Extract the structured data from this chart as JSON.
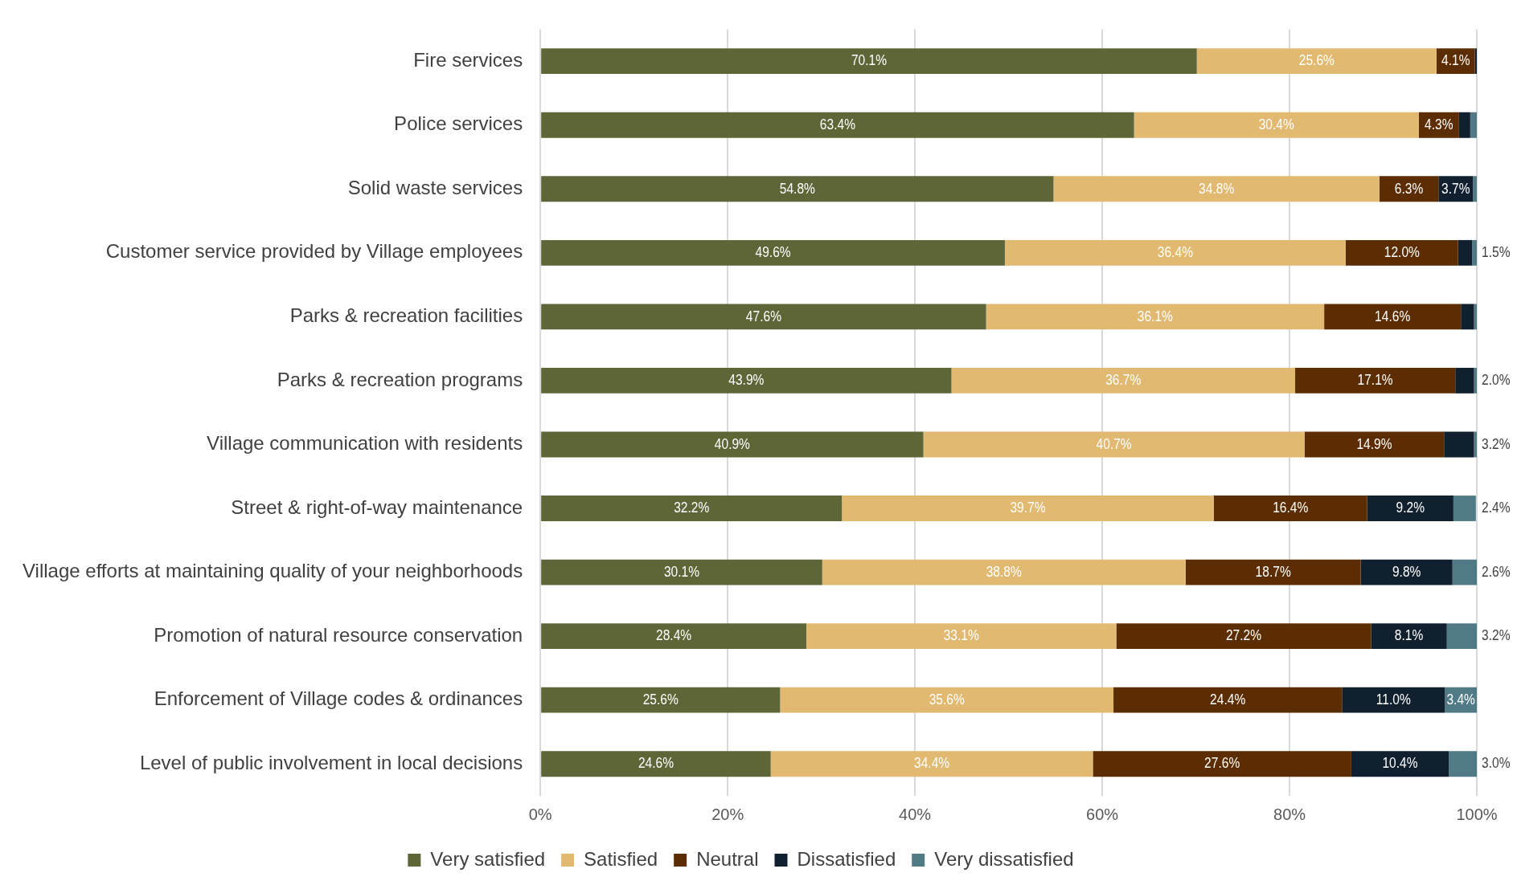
{
  "chart_data": {
    "type": "bar",
    "orientation": "horizontal",
    "stacked": true,
    "legend": "bottom",
    "grid": "x",
    "categories": [
      "Fire services",
      "Police services",
      "Solid waste services",
      "Customer service provided by Village employees",
      "Parks & recreation facilities",
      "Parks & recreation programs",
      "Village communication with residents",
      "Street & right-of-way maintenance",
      "Village efforts at maintaining quality of your neighborhoods",
      "Promotion of natural resource conservation",
      "Enforcement of Village codes & ordinances",
      "Level of public involvement in local decisions"
    ],
    "xlim": [
      0,
      100
    ],
    "xticks": [
      {
        "value": 0,
        "label": "0%"
      },
      {
        "value": 20,
        "label": "20%"
      },
      {
        "value": 40,
        "label": "40%"
      },
      {
        "value": 60,
        "label": "60%"
      },
      {
        "value": 80,
        "label": "80%"
      },
      {
        "value": 100,
        "label": "100%"
      }
    ],
    "series": [
      {
        "name": "Very satisfied",
        "color": "#5e6638",
        "values": [
          70.1,
          63.4,
          54.8,
          49.6,
          47.6,
          43.9,
          40.9,
          32.2,
          30.1,
          28.4,
          25.6,
          24.6
        ],
        "value_labels": [
          "70.1%",
          "63.4%",
          "54.8%",
          "49.6%",
          "47.6%",
          "43.9%",
          "40.9%",
          "32.2%",
          "30.1%",
          "28.4%",
          "25.6%",
          "24.6%"
        ]
      },
      {
        "name": "Satisfied",
        "color": "#e2b970",
        "values": [
          25.6,
          30.4,
          34.8,
          36.4,
          36.1,
          36.7,
          40.7,
          39.7,
          38.8,
          33.1,
          35.6,
          34.4
        ],
        "value_labels": [
          "25.6%",
          "30.4%",
          "34.8%",
          "36.4%",
          "36.1%",
          "36.7%",
          "40.7%",
          "39.7%",
          "38.8%",
          "33.1%",
          "35.6%",
          "34.4%"
        ]
      },
      {
        "name": "Neutral",
        "color": "#5c2d02",
        "values": [
          4.1,
          4.3,
          6.3,
          12.0,
          14.6,
          17.1,
          14.9,
          16.4,
          18.7,
          27.2,
          24.4,
          27.6
        ],
        "value_labels": [
          "4.1%",
          "4.3%",
          "6.3%",
          "12.0%",
          "14.6%",
          "17.1%",
          "14.9%",
          "16.4%",
          "18.7%",
          "27.2%",
          "24.4%",
          "27.6%"
        ]
      },
      {
        "name": "Dissatisfied",
        "color": "#10202e",
        "values": [
          0.2,
          1.2,
          3.7,
          1.5,
          1.4,
          2.0,
          3.2,
          9.2,
          9.8,
          8.1,
          11.0,
          10.4
        ],
        "value_labels": [
          null,
          null,
          "3.7%",
          "1.5%",
          null,
          "2.0%",
          "3.2%",
          "9.2%",
          "9.8%",
          "8.1%",
          "11.0%",
          "10.4%"
        ]
      },
      {
        "name": "Very dissatisfied",
        "color": "#517a87",
        "values": [
          0,
          0.7,
          0.4,
          0.5,
          0.3,
          0.3,
          0.3,
          2.4,
          2.6,
          3.2,
          3.4,
          3.0
        ],
        "value_labels": [
          null,
          null,
          null,
          null,
          null,
          null,
          null,
          "2.4%",
          "2.6%",
          "3.2%",
          "3.4%",
          "3.0%"
        ]
      }
    ]
  }
}
